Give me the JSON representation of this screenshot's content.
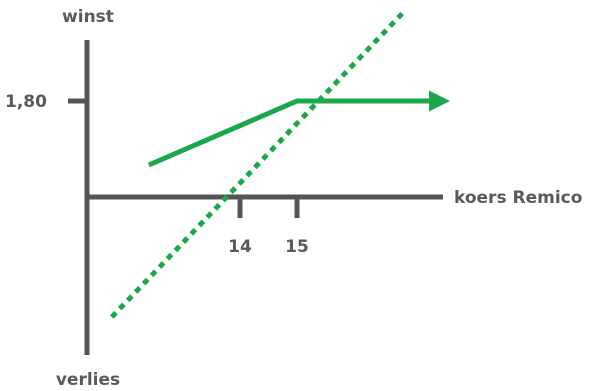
{
  "chart_data": {
    "type": "line",
    "ylabel_top": "winst",
    "ylabel_bottom": "verlies",
    "xlabel": "koers Remico",
    "x_ticks": [
      "14",
      "15"
    ],
    "y_ticks": [
      "1,80"
    ],
    "series": [
      {
        "style": "solid",
        "arrow": "lower-left",
        "points": [
          [
            12.4,
            0.6
          ],
          [
            15,
            1.8
          ],
          [
            17.5,
            1.8
          ]
        ]
      },
      {
        "style": "dotted",
        "points": [
          [
            11.75,
            -2.25
          ],
          [
            16.9,
            3.5
          ]
        ]
      }
    ],
    "colors": {
      "axis": "#545454",
      "line": "#1aa84a",
      "text": "#5a5a5a"
    }
  }
}
